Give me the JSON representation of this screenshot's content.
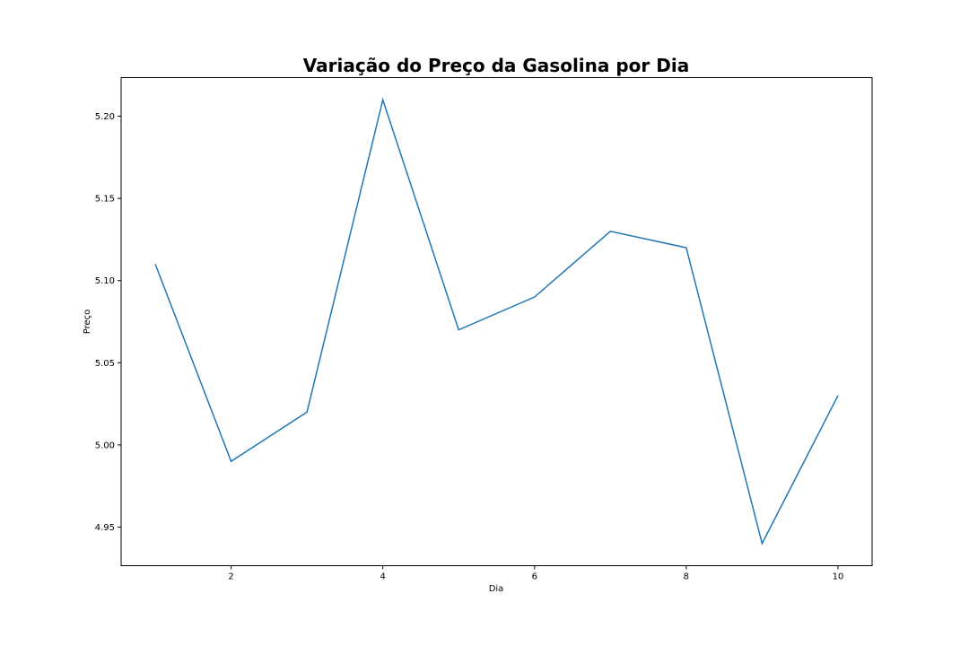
{
  "chart_data": {
    "type": "line",
    "title": "Variação do Preço da Gasolina por Dia",
    "xlabel": "Dia",
    "ylabel": "Preço",
    "x": [
      1,
      2,
      3,
      4,
      5,
      6,
      7,
      8,
      9,
      10
    ],
    "series": [
      {
        "values": [
          5.11,
          4.99,
          5.02,
          5.21,
          5.07,
          5.09,
          5.13,
          5.12,
          4.94,
          5.03
        ]
      }
    ],
    "xlim": [
      0.55,
      10.45
    ],
    "ylim": [
      4.9265,
      5.2235
    ],
    "xticks": [
      2,
      4,
      6,
      8,
      10
    ],
    "xtick_labels": [
      "2",
      "4",
      "6",
      "8",
      "10"
    ],
    "yticks": [
      4.95,
      5.0,
      5.05,
      5.1,
      5.15,
      5.2
    ],
    "ytick_labels": [
      "4.95",
      "5.00",
      "5.05",
      "5.10",
      "5.15",
      "5.20"
    ],
    "grid": false,
    "line_color": "#1f77b4"
  }
}
